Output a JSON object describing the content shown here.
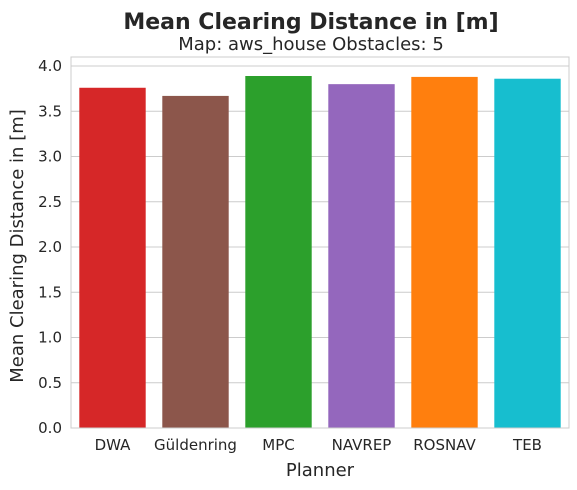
{
  "chart_data": {
    "type": "bar",
    "title": "Mean Clearing Distance in [m]",
    "subtitle": "Map: aws_house Obstacles: 5",
    "xlabel": "Planner",
    "ylabel": "Mean Clearing Distance in [m]",
    "categories": [
      "DWA",
      "Güldenring",
      "MPC",
      "NAVREP",
      "ROSNAV",
      "TEB"
    ],
    "values": [
      3.76,
      3.67,
      3.89,
      3.8,
      3.88,
      3.86
    ],
    "colors": [
      "#d62728",
      "#8c564b",
      "#2ca02c",
      "#9467bd",
      "#ff7f0e",
      "#17becf"
    ],
    "ylim": [
      0,
      4.1
    ],
    "yticks": [
      "0.0",
      "0.5",
      "1.0",
      "1.5",
      "2.0",
      "2.5",
      "3.0",
      "3.5",
      "4.0"
    ],
    "grid": true,
    "legend": "none"
  }
}
